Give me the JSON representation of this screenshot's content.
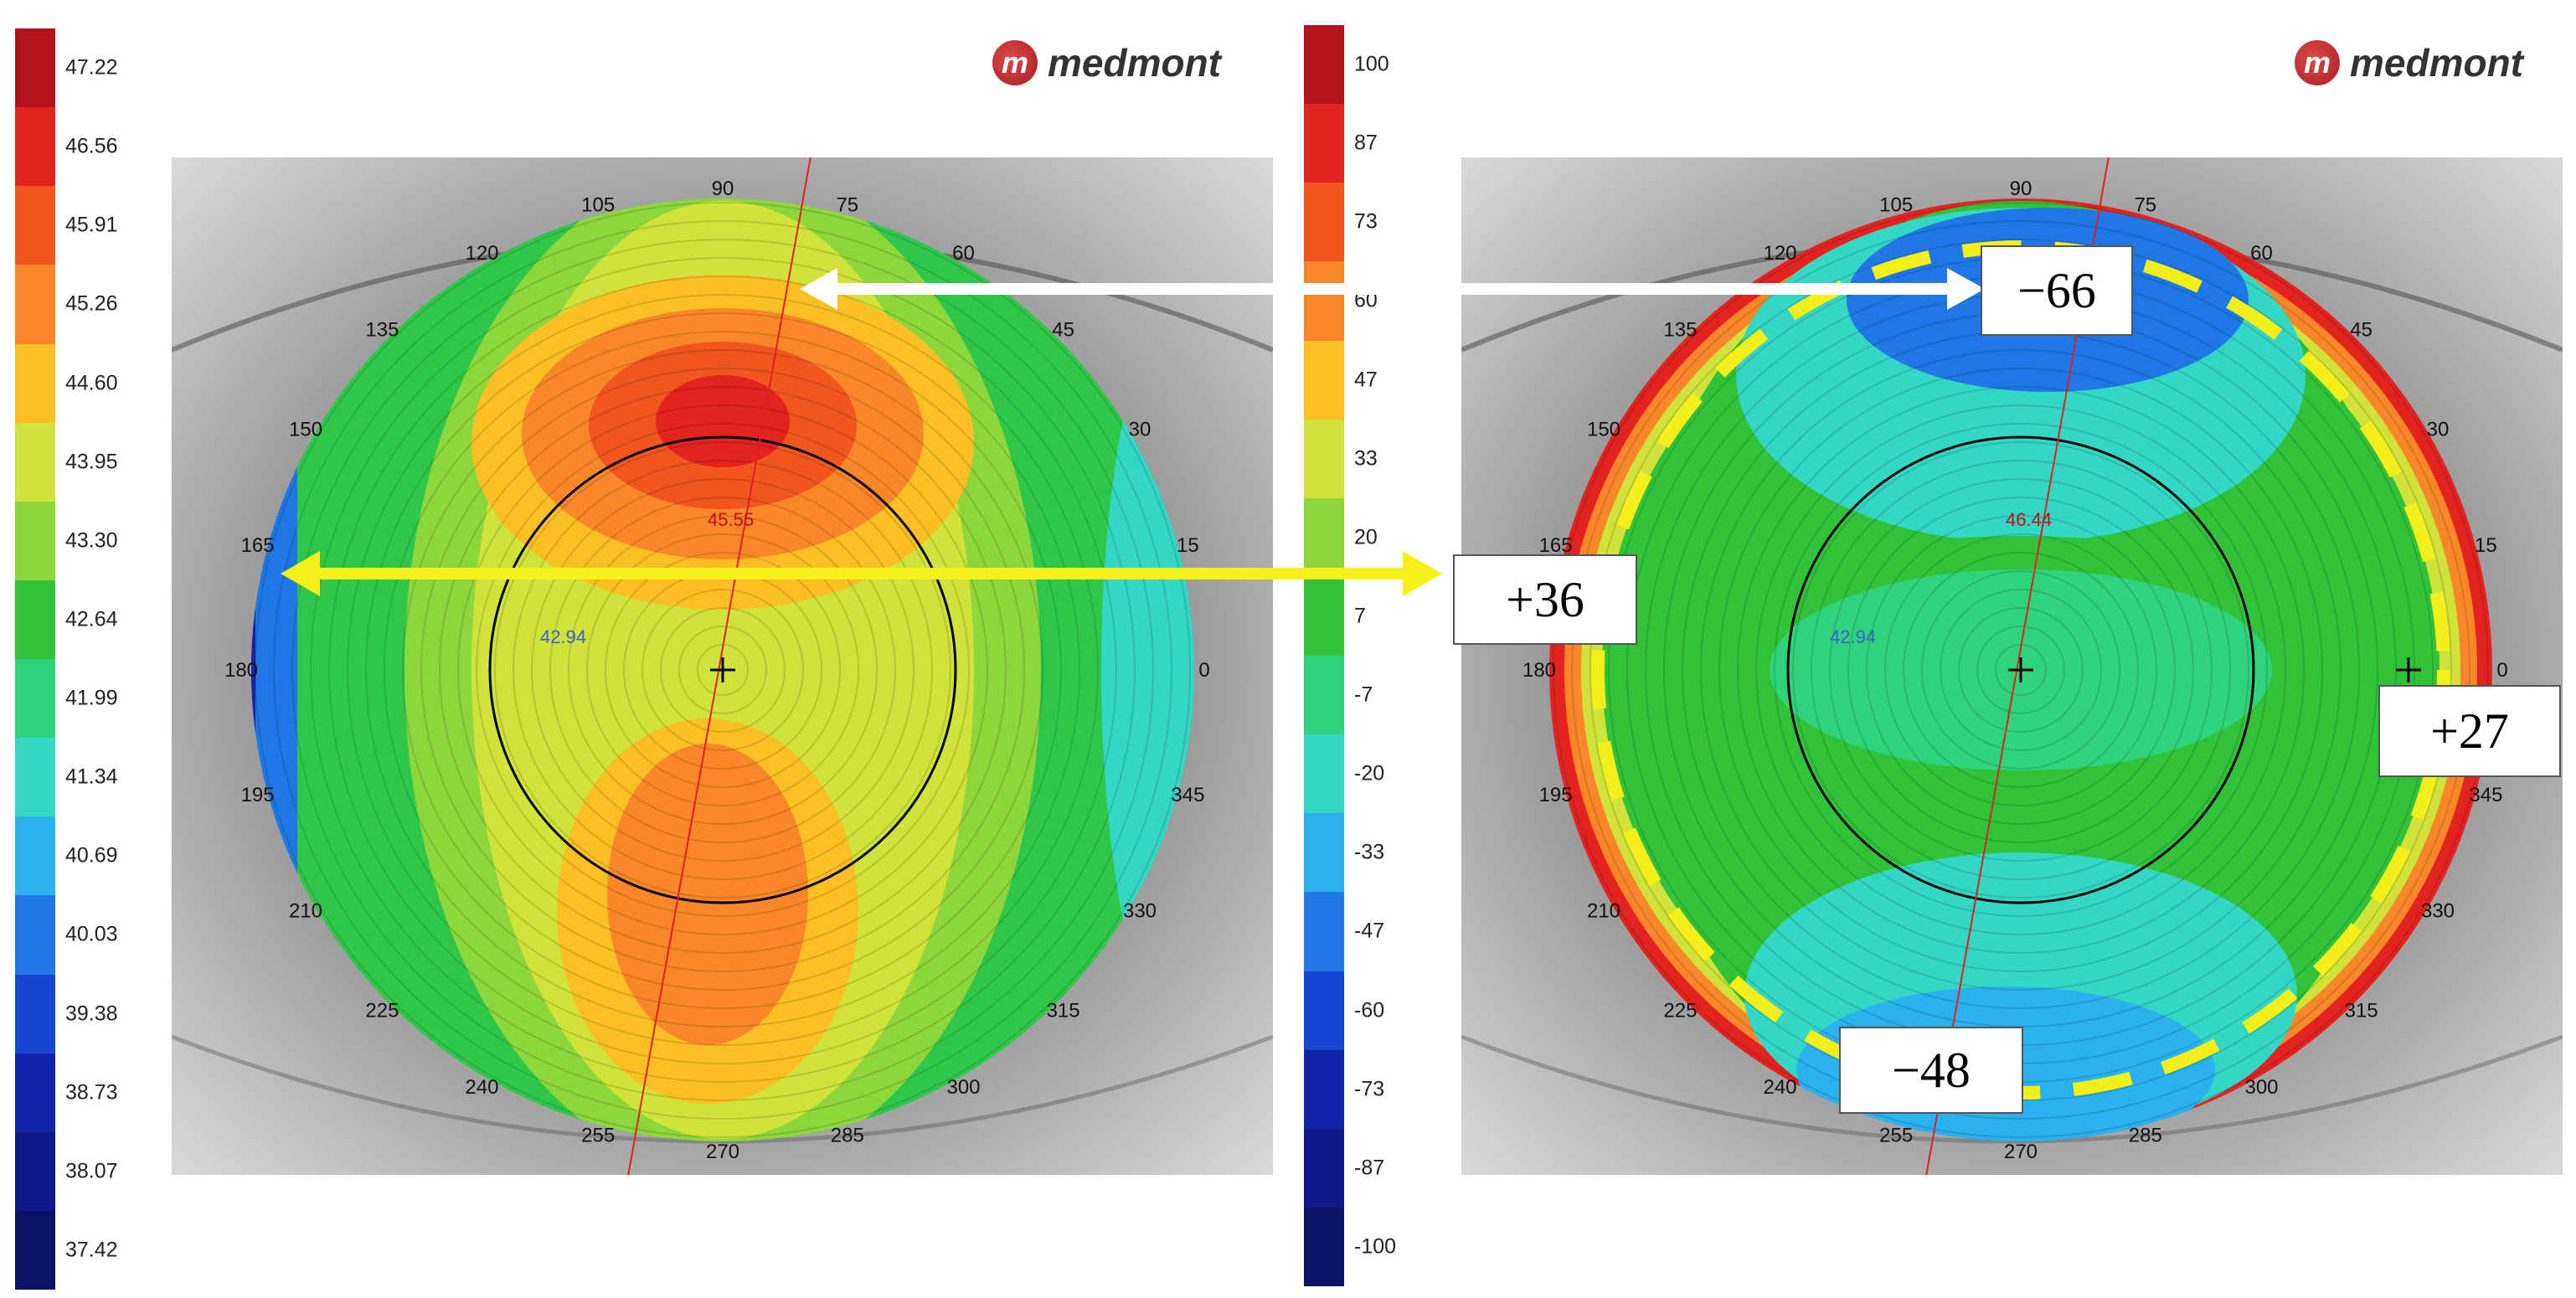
{
  "left": {
    "logo": "medmont",
    "legend": [
      "47.22",
      "46.56",
      "45.91",
      "45.26",
      "44.60",
      "43.95",
      "43.30",
      "42.64",
      "41.99",
      "41.34",
      "40.69",
      "40.03",
      "39.38",
      "38.73",
      "38.07",
      "37.42"
    ],
    "legend_colors": [
      "#b5121b",
      "#e3231f",
      "#f2561f",
      "#f8872a",
      "#fbbf26",
      "#cfe33a",
      "#8dd63b",
      "#31c239",
      "#2fd37b",
      "#34d6c4",
      "#2ab2ee",
      "#1f78e6",
      "#1647d2",
      "#1424a8",
      "#10198a",
      "#0b1266"
    ],
    "center_value": "42.94",
    "top_value": "45.55"
  },
  "right": {
    "logo": "medmont",
    "legend": [
      "100",
      "87",
      "73",
      "60",
      "47",
      "33",
      "20",
      "7",
      "-7",
      "-20",
      "-33",
      "-47",
      "-60",
      "-73",
      "-87",
      "-100"
    ],
    "legend_colors": [
      "#b5121b",
      "#e3231f",
      "#f2561f",
      "#f8872a",
      "#fbbf26",
      "#cfe33a",
      "#8dd63b",
      "#31c239",
      "#2fd37b",
      "#34d6c4",
      "#2ab2ee",
      "#1f78e6",
      "#1647d2",
      "#1424a8",
      "#10198a",
      "#0b1266"
    ],
    "center_value": "42.94",
    "top_value": "46.44",
    "callouts": {
      "top": "−66",
      "left": "+36",
      "right": "+27",
      "bottom": "−48"
    }
  },
  "angles": [
    "0",
    "15",
    "30",
    "45",
    "60",
    "75",
    "90",
    "105",
    "120",
    "135",
    "150",
    "165",
    "180",
    "195",
    "210",
    "225",
    "240",
    "255",
    "270",
    "285",
    "300",
    "315",
    "330",
    "345"
  ]
}
